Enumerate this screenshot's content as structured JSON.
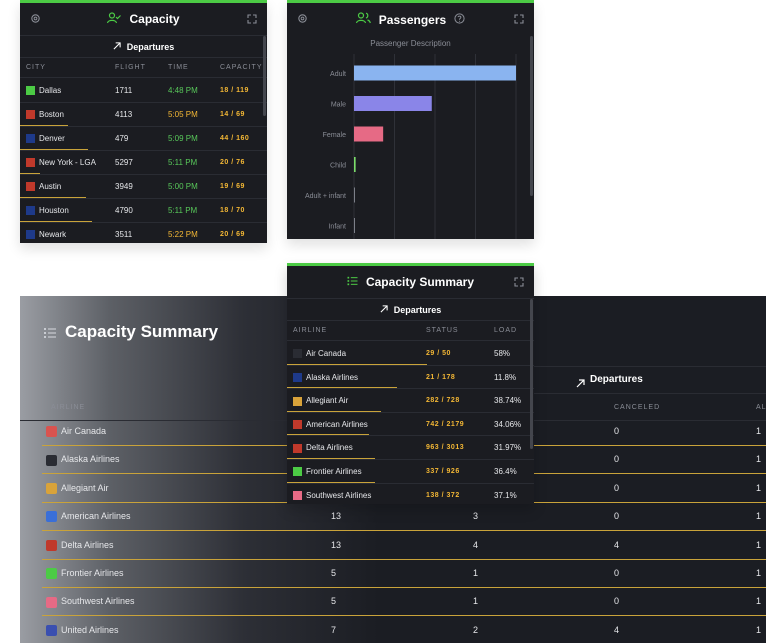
{
  "capacity": {
    "title": "Capacity",
    "subheader": "Departures",
    "columns": [
      "CITY",
      "FLIGHT",
      "TIME",
      "CAPACITY"
    ],
    "rows": [
      {
        "city": "Dallas",
        "flight": "1711",
        "time": "4:48 PM",
        "cap_a": "18",
        "cap_b": "119"
      },
      {
        "city": "Boston",
        "flight": "4113",
        "time": "5:05 PM",
        "cap_a": "14",
        "cap_b": "69"
      },
      {
        "city": "Denver",
        "flight": "479",
        "time": "5:09 PM",
        "cap_a": "44",
        "cap_b": "160"
      },
      {
        "city": "New York - LGA",
        "flight": "5297",
        "time": "5:11 PM",
        "cap_a": "20",
        "cap_b": "76"
      },
      {
        "city": "Austin",
        "flight": "3949",
        "time": "5:00 PM",
        "cap_a": "19",
        "cap_b": "69"
      },
      {
        "city": "Houston",
        "flight": "4790",
        "time": "5:11 PM",
        "cap_a": "18",
        "cap_b": "70"
      },
      {
        "city": "Newark",
        "flight": "3511",
        "time": "5:22 PM",
        "cap_a": "20",
        "cap_b": "69"
      }
    ]
  },
  "passengers": {
    "title": "Passengers",
    "chart_title": "Passenger Description"
  },
  "chart_data": {
    "type": "bar",
    "orientation": "horizontal",
    "title": "Passenger Description",
    "categories": [
      "Adult",
      "Male",
      "Female",
      "Child",
      "Adult + infant",
      "Infant"
    ],
    "values": [
      100,
      48,
      18,
      1,
      0,
      0
    ],
    "colors": [
      "#8ab4f0",
      "#8a85e8",
      "#e66a85",
      "#7bdc6a",
      "#7c7f88",
      "#7c7f88"
    ],
    "xlim": [
      0,
      100
    ],
    "grid": true
  },
  "summary_small": {
    "title": "Capacity Summary",
    "subheader": "Departures",
    "columns": [
      "AIRLINE",
      "STATUS",
      "LOAD"
    ],
    "rows": [
      {
        "airline": "Air Canada",
        "status_a": "29",
        "status_b": "50",
        "load": "58%"
      },
      {
        "airline": "Alaska Airlines",
        "status_a": "21",
        "status_b": "178",
        "load": "11.8%"
      },
      {
        "airline": "Allegiant Air",
        "status_a": "282",
        "status_b": "728",
        "load": "38.74%"
      },
      {
        "airline": "American Airlines",
        "status_a": "742",
        "status_b": "2179",
        "load": "34.06%"
      },
      {
        "airline": "Delta Airlines",
        "status_a": "963",
        "status_b": "3013",
        "load": "31.97%"
      },
      {
        "airline": "Frontier Airlines",
        "status_a": "337",
        "status_b": "926",
        "load": "36.4%"
      },
      {
        "airline": "Southwest Airlines",
        "status_a": "138",
        "status_b": "372",
        "load": "37.1%"
      }
    ]
  },
  "summary_big": {
    "title": "Capacity Summary",
    "subheader": "Departures",
    "columns": [
      "AIRLINE",
      "CANCELED",
      "AL"
    ],
    "rows": [
      {
        "airline": "Air Canada",
        "c1": "",
        "c2": "",
        "canceled": "0",
        "last": "1"
      },
      {
        "airline": "Alaska Airlines",
        "c1": "",
        "c2": "",
        "canceled": "0",
        "last": "1"
      },
      {
        "airline": "Allegiant Air",
        "c1": "",
        "c2": "",
        "canceled": "0",
        "last": "1"
      },
      {
        "airline": "American Airlines",
        "c1": "13",
        "c2": "3",
        "canceled": "0",
        "last": "1"
      },
      {
        "airline": "Delta Airlines",
        "c1": "13",
        "c2": "4",
        "canceled": "4",
        "last": "1"
      },
      {
        "airline": "Frontier Airlines",
        "c1": "5",
        "c2": "1",
        "canceled": "0",
        "last": "1"
      },
      {
        "airline": "Southwest Airlines",
        "c1": "5",
        "c2": "1",
        "canceled": "0",
        "last": "1"
      },
      {
        "airline": "United Airlines",
        "c1": "7",
        "c2": "2",
        "canceled": "4",
        "last": "1"
      }
    ]
  },
  "colors": {
    "accent": "#4ccb45",
    "capacity": "#f3b735",
    "on_time": "#58c85a",
    "panel": "#1b1c21"
  }
}
